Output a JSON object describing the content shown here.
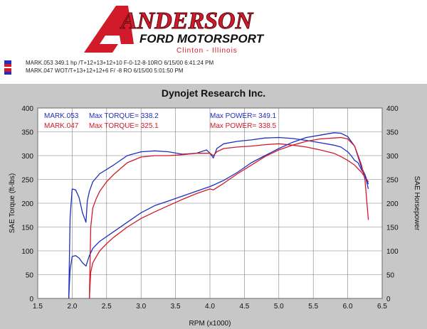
{
  "header": {
    "brand_name": "ANDERSON",
    "brand_sub": "FORD MOTORSPORT",
    "location": "Clinton - Illinois"
  },
  "runs": [
    {
      "text": "MARK.053   349.1 hp /T+12+13+12+10    F-0-12-8-10RO  6/15/00 6:41:24 PM",
      "swatch_top": "#1f2fbf",
      "swatch_bottom": "#d11a2a"
    },
    {
      "text": "MARK.047   WOT/T+13+12+12+6   F/ -8                  RO  6/15/00 5:01:50 PM",
      "swatch_top": "#d11a2a",
      "swatch_bottom": "#1f2fbf"
    }
  ],
  "colors": {
    "panel": "#c7c7c7",
    "plot_bg": "#ffffff",
    "grid": "#7f7f7f",
    "blue": "#1f2fbf",
    "red": "#d11a2a",
    "logo_red": "#d11a2a"
  },
  "chart_data": {
    "type": "line",
    "title": "Dynojet Research Inc.",
    "xlabel": "RPM (x1000)",
    "ylabel_left": "SAE Torque (ft-lbs)",
    "ylabel_right": "SAE Horsepower",
    "xlim": [
      1.5,
      6.5
    ],
    "ylim": [
      0,
      400
    ],
    "x_ticks": [
      "1.5",
      "2.0",
      "2.5",
      "3.0",
      "3.5",
      "4.0",
      "4.5",
      "5.0",
      "5.5",
      "6.0",
      "6.5"
    ],
    "y_ticks": [
      "0",
      "50",
      "100",
      "150",
      "200",
      "250",
      "300",
      "350",
      "400"
    ],
    "grid": true,
    "annotations": [
      {
        "text": "MARK.053",
        "color": "#1f2fbf"
      },
      {
        "text": "Max TORQUE= 338.2",
        "color": "#1f2fbf"
      },
      {
        "text": "Max POWER= 349.1",
        "color": "#1f2fbf"
      },
      {
        "text": "MARK.047",
        "color": "#d11a2a"
      },
      {
        "text": "Max TORQUE= 325.1",
        "color": "#d11a2a"
      },
      {
        "text": "Max POWER= 338.5",
        "color": "#d11a2a"
      }
    ],
    "series": [
      {
        "name": "MARK.053",
        "measure": "torque",
        "color": "#1f2fbf",
        "x": [
          1.95,
          1.97,
          2.0,
          2.05,
          2.1,
          2.15,
          2.2,
          2.22,
          2.25,
          2.3,
          2.4,
          2.6,
          2.8,
          3.0,
          3.2,
          3.4,
          3.6,
          3.8,
          3.95,
          4.0,
          4.05,
          4.1,
          4.2,
          4.4,
          4.6,
          4.8,
          5.0,
          5.2,
          5.4,
          5.6,
          5.8,
          5.9,
          6.0,
          6.05,
          6.1,
          6.15,
          6.2,
          6.25,
          6.3
        ],
        "y": [
          0,
          170,
          230,
          228,
          212,
          180,
          160,
          205,
          225,
          245,
          262,
          280,
          300,
          308,
          310,
          308,
          303,
          305,
          312,
          305,
          295,
          315,
          325,
          330,
          333,
          337,
          338,
          336,
          332,
          327,
          322,
          318,
          308,
          300,
          290,
          285,
          270,
          260,
          240
        ]
      },
      {
        "name": "MARK.047",
        "measure": "torque",
        "color": "#d11a2a",
        "x": [
          2.25,
          2.27,
          2.3,
          2.35,
          2.4,
          2.5,
          2.6,
          2.8,
          3.0,
          3.2,
          3.4,
          3.6,
          3.8,
          4.0,
          4.05,
          4.1,
          4.2,
          4.4,
          4.6,
          4.8,
          5.0,
          5.2,
          5.4,
          5.6,
          5.8,
          5.9,
          6.0,
          6.1,
          6.2,
          6.3
        ],
        "y": [
          0,
          150,
          190,
          210,
          225,
          245,
          260,
          285,
          297,
          300,
          300,
          302,
          305,
          305,
          300,
          308,
          315,
          318,
          320,
          323,
          325,
          322,
          318,
          312,
          305,
          298,
          290,
          280,
          265,
          245
        ]
      },
      {
        "name": "MARK.053",
        "measure": "power",
        "color": "#1f2fbf",
        "x": [
          1.95,
          1.97,
          2.0,
          2.05,
          2.1,
          2.15,
          2.2,
          2.25,
          2.3,
          2.4,
          2.6,
          2.8,
          3.0,
          3.2,
          3.4,
          3.6,
          3.8,
          4.0,
          4.05,
          4.2,
          4.4,
          4.6,
          4.8,
          5.0,
          5.2,
          5.4,
          5.6,
          5.8,
          5.9,
          6.0,
          6.1,
          6.2,
          6.25,
          6.3
        ],
        "y": [
          0,
          60,
          88,
          90,
          85,
          75,
          68,
          90,
          105,
          120,
          140,
          160,
          180,
          195,
          205,
          215,
          225,
          235,
          238,
          248,
          265,
          285,
          300,
          315,
          328,
          338,
          343,
          348,
          347,
          340,
          320,
          275,
          260,
          230
        ]
      },
      {
        "name": "MARK.047",
        "measure": "power",
        "color": "#d11a2a",
        "x": [
          2.25,
          2.27,
          2.3,
          2.4,
          2.5,
          2.6,
          2.8,
          3.0,
          3.2,
          3.4,
          3.6,
          3.8,
          4.0,
          4.05,
          4.2,
          4.4,
          4.6,
          4.8,
          5.0,
          5.2,
          5.4,
          5.6,
          5.8,
          5.9,
          6.0,
          6.1,
          6.2,
          6.25,
          6.3
        ],
        "y": [
          0,
          55,
          75,
          100,
          115,
          128,
          150,
          168,
          182,
          195,
          208,
          220,
          230,
          228,
          242,
          262,
          280,
          298,
          312,
          322,
          330,
          335,
          337,
          338,
          335,
          320,
          280,
          250,
          165
        ]
      }
    ]
  }
}
